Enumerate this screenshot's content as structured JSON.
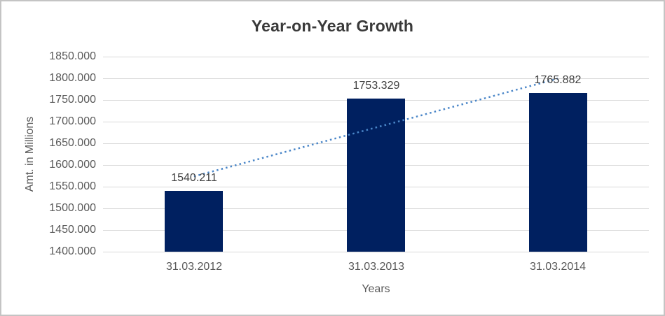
{
  "frame": {
    "background": "#ffffff",
    "border_color": "#c4c4c4"
  },
  "chart_data": {
    "type": "bar",
    "title": "Year-on-Year Growth",
    "categories": [
      "31.03.2012",
      "31.03.2013",
      "31.03.2014"
    ],
    "values": [
      1540.211,
      1753.329,
      1765.882
    ],
    "data_labels": [
      "1540.211",
      "1753.329",
      "1765.882"
    ],
    "xlabel": "Years",
    "ylabel": "Amt. in Millions",
    "ylim": [
      1400,
      1850
    ],
    "ytick_step": 50,
    "ytick_labels": [
      "1400.000",
      "1450.000",
      "1500.000",
      "1550.000",
      "1600.000",
      "1650.000",
      "1700.000",
      "1750.000",
      "1800.000",
      "1850.000"
    ],
    "grid": true,
    "legend": "none",
    "bar_color": "#002060",
    "trendline": {
      "type": "linear",
      "style": "dotted",
      "color": "#4a86c8"
    },
    "colors": {
      "title_text": "#3a3a3a",
      "axis_text": "#595959",
      "data_label_text": "#404040",
      "gridline": "#d9d9d9"
    }
  }
}
